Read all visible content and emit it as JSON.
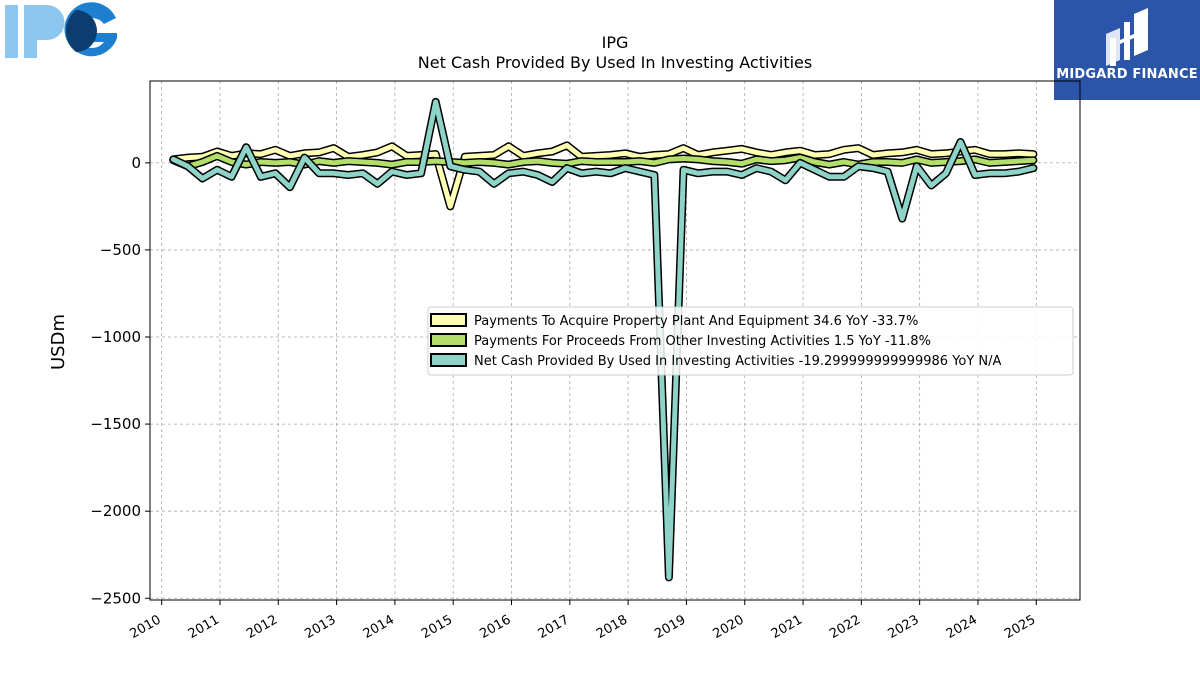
{
  "header": {
    "left_logo": "IPG",
    "right_logo_text": "MIDGARD FINANCE"
  },
  "colors": {
    "series1": "#ffffb3",
    "series2": "#b3de69",
    "series3": "#8dd3c7",
    "outline": "#000000",
    "grid": "#a9a9a9",
    "logo_light": "#8cc6ee",
    "logo_dark": "#1e7fd0",
    "brand_bg": "#2a55a8"
  },
  "chart_data": {
    "type": "line",
    "title": "IPG",
    "subtitle": "Net Cash Provided By Used In Investing Activities",
    "ylabel": "USDm",
    "xlabel": "",
    "xlim": [
      2009.8,
      2025.75
    ],
    "ylim": [
      -2510,
      470
    ],
    "yticks": [
      0,
      -500,
      -1000,
      -1500,
      -2000,
      -2500
    ],
    "ytick_labels": [
      "0",
      "−500",
      "−1000",
      "−1500",
      "−2000",
      "−2500"
    ],
    "xticks": [
      "2010",
      "2011",
      "2012",
      "2013",
      "2014",
      "2015",
      "2016",
      "2017",
      "2018",
      "2019",
      "2020",
      "2021",
      "2022",
      "2023",
      "2024",
      "2025"
    ],
    "grid": true,
    "legend_position": "center-right",
    "x": [
      2010.2,
      2010.45,
      2010.7,
      2010.95,
      2011.2,
      2011.45,
      2011.7,
      2011.95,
      2012.2,
      2012.45,
      2012.7,
      2012.95,
      2013.2,
      2013.45,
      2013.7,
      2013.95,
      2014.2,
      2014.45,
      2014.7,
      2014.95,
      2015.2,
      2015.45,
      2015.7,
      2015.95,
      2016.2,
      2016.45,
      2016.7,
      2016.95,
      2017.2,
      2017.45,
      2017.7,
      2017.95,
      2018.2,
      2018.45,
      2018.7,
      2018.95,
      2019.2,
      2019.45,
      2019.7,
      2019.95,
      2020.2,
      2020.45,
      2020.7,
      2020.95,
      2021.2,
      2021.45,
      2021.7,
      2021.95,
      2022.2,
      2022.45,
      2022.7,
      2022.95,
      2023.2,
      2023.45,
      2023.7,
      2023.95,
      2024.2,
      2024.45,
      2024.7,
      2024.95
    ],
    "series": [
      {
        "name": "Payments To Acquire Property Plant And Equipment  34.6 YoY -33.7%",
        "values": [
          20,
          30,
          35,
          65,
          40,
          55,
          50,
          75,
          40,
          55,
          60,
          85,
          35,
          45,
          60,
          95,
          40,
          45,
          50,
          -250,
          35,
          40,
          45,
          95,
          40,
          55,
          65,
          100,
          35,
          40,
          45,
          55,
          35,
          45,
          50,
          85,
          45,
          60,
          70,
          80,
          60,
          45,
          60,
          70,
          45,
          50,
          75,
          85,
          45,
          55,
          60,
          75,
          50,
          55,
          65,
          75,
          50,
          50,
          55,
          50
        ]
      },
      {
        "name": "Payments For Proceeds From Other Investing Activities  1.5 YoY -11.8%",
        "values": [
          15,
          -20,
          5,
          40,
          5,
          -10,
          5,
          0,
          5,
          -10,
          10,
          0,
          10,
          5,
          0,
          -10,
          5,
          5,
          10,
          5,
          0,
          5,
          0,
          -10,
          5,
          10,
          0,
          -5,
          10,
          5,
          5,
          5,
          10,
          0,
          20,
          25,
          20,
          10,
          5,
          -5,
          20,
          10,
          15,
          30,
          5,
          -10,
          5,
          -10,
          5,
          5,
          0,
          20,
          0,
          5,
          10,
          20,
          0,
          5,
          10,
          15
        ]
      },
      {
        "name": "Net Cash Provided By Used In Investing Activities  -19.299999999999986 YoY N/A",
        "values": [
          20,
          -20,
          -90,
          -40,
          -80,
          90,
          -80,
          -60,
          -140,
          30,
          -60,
          -60,
          -70,
          -60,
          -120,
          -50,
          -70,
          -60,
          350,
          -20,
          -40,
          -50,
          -120,
          -60,
          -50,
          -70,
          -110,
          -30,
          -60,
          -50,
          -60,
          -30,
          -50,
          -70,
          -2380,
          -40,
          -60,
          -50,
          -50,
          -70,
          -30,
          -50,
          -100,
          0,
          -40,
          -80,
          -80,
          -20,
          -30,
          -50,
          -320,
          -20,
          -130,
          -60,
          120,
          -70,
          -60,
          -60,
          -50,
          -30
        ]
      }
    ]
  }
}
